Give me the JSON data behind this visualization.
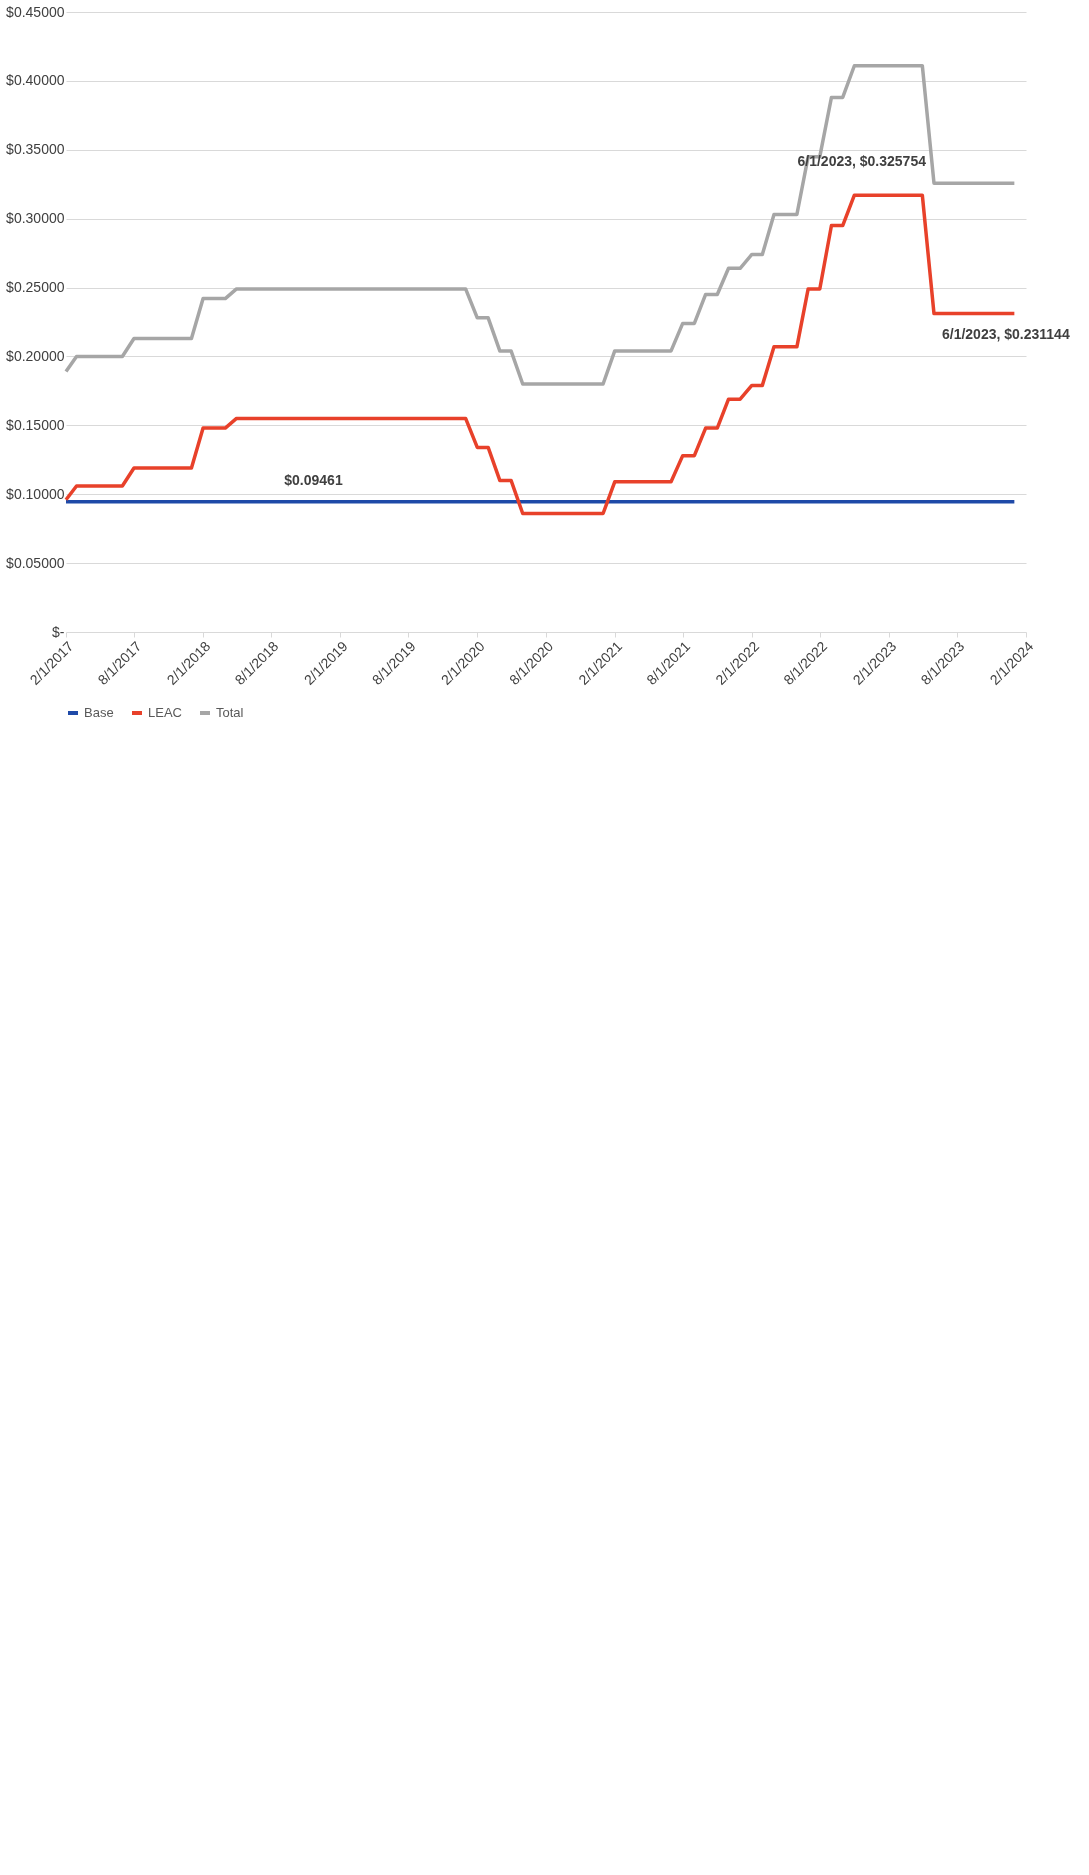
{
  "chart_data": {
    "type": "line",
    "xlim": [
      "2017-02-01",
      "2024-02-01"
    ],
    "xticks": [
      {
        "value": "2017-02-01",
        "label": "2/1/2017"
      },
      {
        "value": "2017-08-01",
        "label": "8/1/2017"
      },
      {
        "value": "2018-02-01",
        "label": "2/1/2018"
      },
      {
        "value": "2018-08-01",
        "label": "8/1/2018"
      },
      {
        "value": "2019-02-01",
        "label": "2/1/2019"
      },
      {
        "value": "2019-08-01",
        "label": "8/1/2019"
      },
      {
        "value": "2020-02-01",
        "label": "2/1/2020"
      },
      {
        "value": "2020-08-01",
        "label": "8/1/2020"
      },
      {
        "value": "2021-02-01",
        "label": "2/1/2021"
      },
      {
        "value": "2021-08-01",
        "label": "8/1/2021"
      },
      {
        "value": "2022-02-01",
        "label": "2/1/2022"
      },
      {
        "value": "2022-08-01",
        "label": "8/1/2022"
      },
      {
        "value": "2023-02-01",
        "label": "2/1/2023"
      },
      {
        "value": "2023-08-01",
        "label": "8/1/2023"
      },
      {
        "value": "2024-02-01",
        "label": "2/1/2024"
      }
    ],
    "ylim": [
      0,
      0.45
    ],
    "yticks": [
      {
        "value": 0,
        "label": "$-"
      },
      {
        "value": 0.05,
        "label": "$0.05000"
      },
      {
        "value": 0.1,
        "label": "$0.10000"
      },
      {
        "value": 0.15,
        "label": "$0.15000"
      },
      {
        "value": 0.2,
        "label": "$0.20000"
      },
      {
        "value": 0.25,
        "label": "$0.25000"
      },
      {
        "value": 0.3,
        "label": "$0.30000"
      },
      {
        "value": 0.35,
        "label": "$0.35000"
      },
      {
        "value": 0.4,
        "label": "$0.40000"
      },
      {
        "value": 0.45,
        "label": "$0.45000"
      }
    ],
    "grid": "y",
    "legend": "bottom",
    "marker": "none",
    "line_style": "solid",
    "series": [
      {
        "name": "Base",
        "color": "#1f4aa8",
        "x": [
          "2017-02",
          "2024-01"
        ],
        "values": [
          0.09461,
          0.09461
        ]
      },
      {
        "name": "LEAC",
        "color": "#e8412a",
        "x": [
          "2017-02",
          "2017-03",
          "2017-07",
          "2017-08",
          "2018-01",
          "2018-02",
          "2018-04",
          "2018-05",
          "2020-01",
          "2020-02",
          "2020-03",
          "2020-04",
          "2020-05",
          "2020-06",
          "2021-01",
          "2021-02",
          "2021-07",
          "2021-08",
          "2021-09",
          "2021-10",
          "2021-11",
          "2021-12",
          "2022-01",
          "2022-02",
          "2022-03",
          "2022-04",
          "2022-06",
          "2022-07",
          "2022-08",
          "2022-09",
          "2022-10",
          "2022-11",
          "2023-05",
          "2023-06",
          "2024-01"
        ],
        "values": [
          0.096,
          0.106,
          0.106,
          0.119,
          0.119,
          0.148,
          0.148,
          0.155,
          0.155,
          0.134,
          0.134,
          0.11,
          0.11,
          0.086,
          0.086,
          0.109,
          0.109,
          0.128,
          0.128,
          0.148,
          0.148,
          0.169,
          0.169,
          0.179,
          0.179,
          0.207,
          0.207,
          0.249,
          0.249,
          0.295,
          0.295,
          0.317,
          0.317,
          0.231144,
          0.231144
        ]
      },
      {
        "name": "Total",
        "color": "#a6a6a6",
        "x": [
          "2017-02",
          "2017-03",
          "2017-07",
          "2017-08",
          "2018-01",
          "2018-02",
          "2018-04",
          "2018-05",
          "2020-01",
          "2020-02",
          "2020-03",
          "2020-04",
          "2020-05",
          "2020-06",
          "2021-01",
          "2021-02",
          "2021-07",
          "2021-08",
          "2021-09",
          "2021-10",
          "2021-11",
          "2021-12",
          "2022-01",
          "2022-02",
          "2022-03",
          "2022-04",
          "2022-06",
          "2022-07",
          "2022-08",
          "2022-09",
          "2022-10",
          "2022-11",
          "2023-05",
          "2023-06",
          "2024-01"
        ],
        "values": [
          0.189,
          0.2,
          0.2,
          0.213,
          0.213,
          0.242,
          0.242,
          0.249,
          0.249,
          0.228,
          0.228,
          0.204,
          0.204,
          0.18,
          0.18,
          0.204,
          0.204,
          0.224,
          0.224,
          0.245,
          0.245,
          0.264,
          0.264,
          0.274,
          0.274,
          0.303,
          0.303,
          0.345,
          0.345,
          0.388,
          0.388,
          0.411,
          0.411,
          0.325754,
          0.325754
        ]
      }
    ],
    "annotations": [
      {
        "text": "6/1/2023,  $0.325754",
        "x": "2023-06",
        "y": 0.325754
      },
      {
        "text": "6/1/2023,  $0.231144",
        "x": "2023-06",
        "y": 0.231144
      },
      {
        "text": "$0.09461",
        "x": "2019-03",
        "y": 0.09461
      }
    ]
  }
}
